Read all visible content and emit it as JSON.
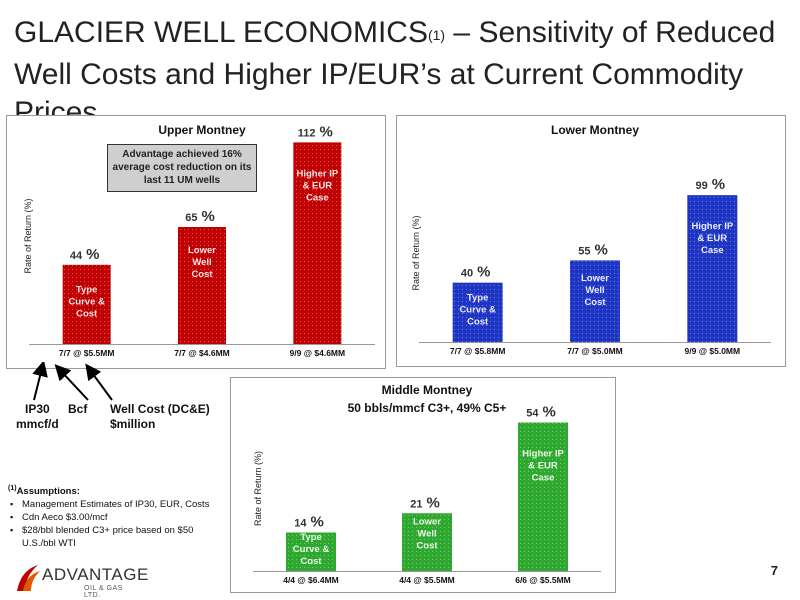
{
  "slide": {
    "title_part1": "GLACIER WELL ECONOMICS",
    "title_sup": "(1)",
    "title_part2": " – Sensitivity of Reduced Well Costs and Higher IP/EUR’s at Current Commodity Prices",
    "page_number": "7"
  },
  "legend_labels": {
    "ip30": "IP30\nmmcf/d",
    "bcf": "Bcf",
    "well_cost": "Well Cost (DC&E)\n$million"
  },
  "assumptions": {
    "heading_sup": "(1)",
    "heading": "Assumptions:",
    "items": [
      "Management Estimates of IP30, EUR, Costs",
      "Cdn Aeco $3.00/mcf",
      "$28/bbl blended C3+ price based on $50 U.S./bbl WTI"
    ]
  },
  "logo": {
    "name": "ADVANTAGE",
    "sub": "OIL & GAS LTD."
  },
  "colors": {
    "upper": "#c00000",
    "lower": "#1f35c4",
    "middle": "#2fa82f"
  },
  "chart_data": [
    {
      "type": "bar",
      "title": "Upper Montney",
      "subtitle": "",
      "ylabel": "Rate of Return (%)",
      "ylim": [
        0,
        120
      ],
      "color": "#c00000",
      "categories": [
        "7/7 @ $5.5MM",
        "7/7 @ $4.6MM",
        "9/9 @ $4.6MM"
      ],
      "values": [
        44,
        65,
        112
      ],
      "bar_labels": [
        "Type\nCurve &\nCost",
        "Lower\nWell\nCost",
        "Higher IP\n& EUR\nCase"
      ],
      "annotation": "Advantage achieved 16% average cost reduction on its last 11 UM wells"
    },
    {
      "type": "bar",
      "title": "Lower Montney",
      "subtitle": "",
      "ylabel": "Rate of Return (%)",
      "ylim": [
        0,
        120
      ],
      "color": "#1f35c4",
      "categories": [
        "7/7 @ $5.8MM",
        "7/7 @ $5.0MM",
        "9/9 @ $5.0MM"
      ],
      "values": [
        40,
        55,
        99
      ],
      "bar_labels": [
        "Type\nCurve &\nCost",
        "Lower\nWell\nCost",
        "Higher IP\n& EUR\nCase"
      ]
    },
    {
      "type": "bar",
      "title": "Middle Montney",
      "subtitle": "50 bbls/mmcf C3+, 49% C5+",
      "ylabel": "Rate of Return (%)",
      "ylim": [
        0,
        60
      ],
      "color": "#2fa82f",
      "categories": [
        "4/4 @ $6.4MM",
        "4/4 @ $5.5MM",
        "6/6 @ $5.5MM"
      ],
      "values": [
        14,
        21,
        54
      ],
      "bar_labels": [
        "Type\nCurve &\nCost",
        "Lower\nWell\nCost",
        "Higher IP\n& EUR\nCase"
      ]
    }
  ]
}
